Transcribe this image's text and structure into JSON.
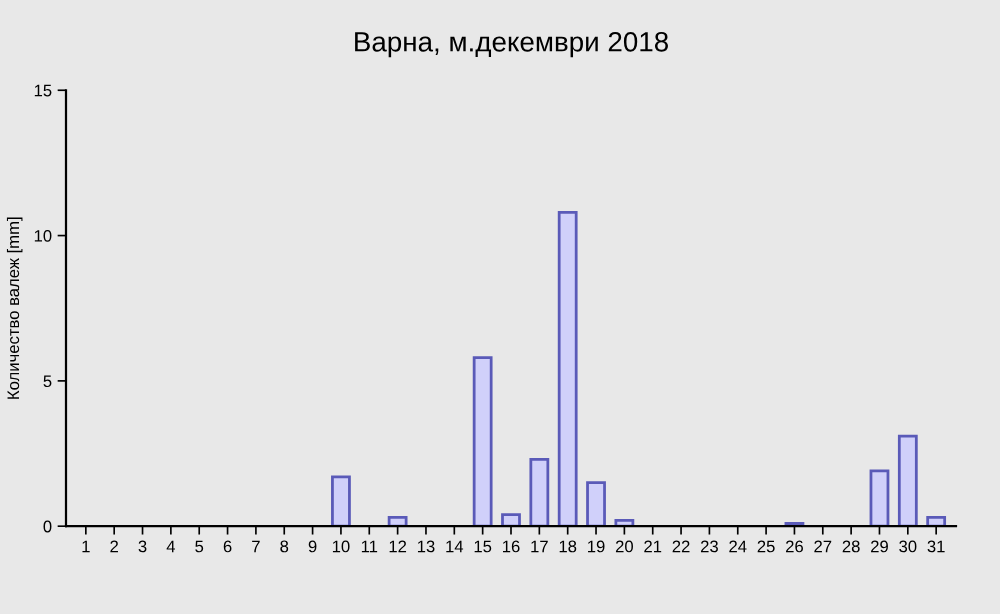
{
  "chart_data": {
    "type": "bar",
    "title": "Варна, м.декември 2018",
    "ylabel": "Количество валеж [mm]",
    "categories": [
      "1",
      "2",
      "3",
      "4",
      "5",
      "6",
      "7",
      "8",
      "9",
      "10",
      "11",
      "12",
      "13",
      "14",
      "15",
      "16",
      "17",
      "18",
      "19",
      "20",
      "21",
      "22",
      "23",
      "24",
      "25",
      "26",
      "27",
      "28",
      "29",
      "30",
      "31"
    ],
    "series": [
      {
        "color": "#d0d0fa",
        "values": [
          0,
          0,
          0,
          0,
          0,
          0,
          0,
          0,
          0,
          1.7,
          0,
          0.3,
          0,
          0,
          5.8,
          0.4,
          2.3,
          10.8,
          1.5,
          0.2,
          0,
          0,
          0,
          0,
          0,
          0.1,
          0,
          0,
          1.9,
          3.1,
          0.3
        ]
      }
    ],
    "ylim": [
      0,
      15
    ],
    "yticks": [
      0,
      5,
      10,
      15
    ],
    "grid": false,
    "legend": false
  }
}
